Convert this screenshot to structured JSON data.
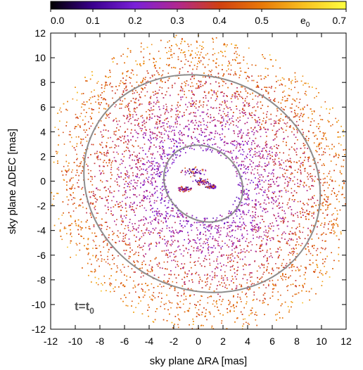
{
  "chart_data": {
    "type": "scatter",
    "title": "",
    "xlabel": "sky plane ΔRA [mas]",
    "ylabel": "sky plane ΔDEC [mas]",
    "xlim": [
      -12,
      12
    ],
    "ylim": [
      -12,
      12
    ],
    "xticks": [
      "-12",
      "-10",
      "-8",
      "-6",
      "-4",
      "-2",
      "0",
      "2",
      "4",
      "6",
      "8",
      "10",
      "12"
    ],
    "yticks": [
      "12",
      "10",
      "8",
      "6",
      "4",
      "2",
      "0",
      "-2",
      "-4",
      "-6",
      "-8",
      "-10",
      "-12"
    ],
    "grid": false,
    "colorbar": {
      "label_main": "e",
      "label_sub": "0",
      "range": [
        0,
        0.7
      ],
      "ticks": [
        "0.0",
        "0.1",
        "0.2",
        "0.3",
        "0.4",
        "0.5",
        "0.7"
      ],
      "colors": [
        "#000000",
        "#3a008f",
        "#7a20d8",
        "#b02890",
        "#d04010",
        "#e87808",
        "#f8c020",
        "#ffff40"
      ]
    },
    "annotation": {
      "main": "t=t",
      "sub": "0"
    },
    "ellipses": [
      {
        "cx": 0.3,
        "cy": -0.2,
        "a": 9.8,
        "b": 8.6,
        "angle_deg": -25,
        "color": "#8c8c8c"
      },
      {
        "cx": 0.4,
        "cy": -0.2,
        "a": 3.4,
        "b": 2.9,
        "angle_deg": -40,
        "color": "#8c8c8c"
      }
    ],
    "distribution": {
      "description_free": true,
      "outer_radius": 12.5,
      "cavity_radius": 2.8,
      "ecc_inner": 0.22,
      "ecc_outer": 0.52
    }
  }
}
